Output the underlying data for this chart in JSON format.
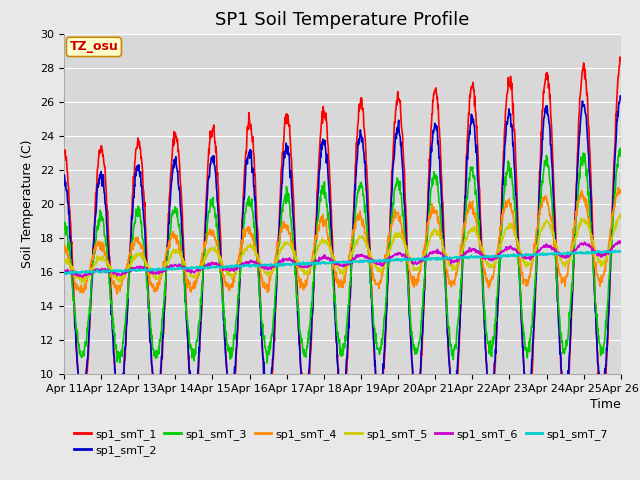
{
  "title": "SP1 Soil Temperature Profile",
  "xlabel": "Time",
  "ylabel": "Soil Temperature (C)",
  "ylim": [
    10,
    30
  ],
  "tz_label": "TZ_osu",
  "x_tick_labels": [
    "Apr 11",
    "Apr 12",
    "Apr 13",
    "Apr 14",
    "Apr 15",
    "Apr 16",
    "Apr 17",
    "Apr 18",
    "Apr 19",
    "Apr 20",
    "Apr 21",
    "Apr 22",
    "Apr 23",
    "Apr 24",
    "Apr 25",
    "Apr 26"
  ],
  "series_colors": {
    "sp1_smT_1": "#ff0000",
    "sp1_smT_2": "#0000cc",
    "sp1_smT_3": "#00cc00",
    "sp1_smT_4": "#ff8800",
    "sp1_smT_5": "#cccc00",
    "sp1_smT_6": "#cc00cc",
    "sp1_smT_7": "#00cccc"
  },
  "background_color": "#e8e8e8",
  "plot_bg_color": "#d8d8d8",
  "grid_color": "#ffffff",
  "title_fontsize": 13,
  "axis_label_fontsize": 9,
  "tick_fontsize": 8,
  "legend_fontsize": 8,
  "yticks": [
    10,
    12,
    14,
    16,
    18,
    20,
    22,
    24,
    26,
    28,
    30
  ]
}
